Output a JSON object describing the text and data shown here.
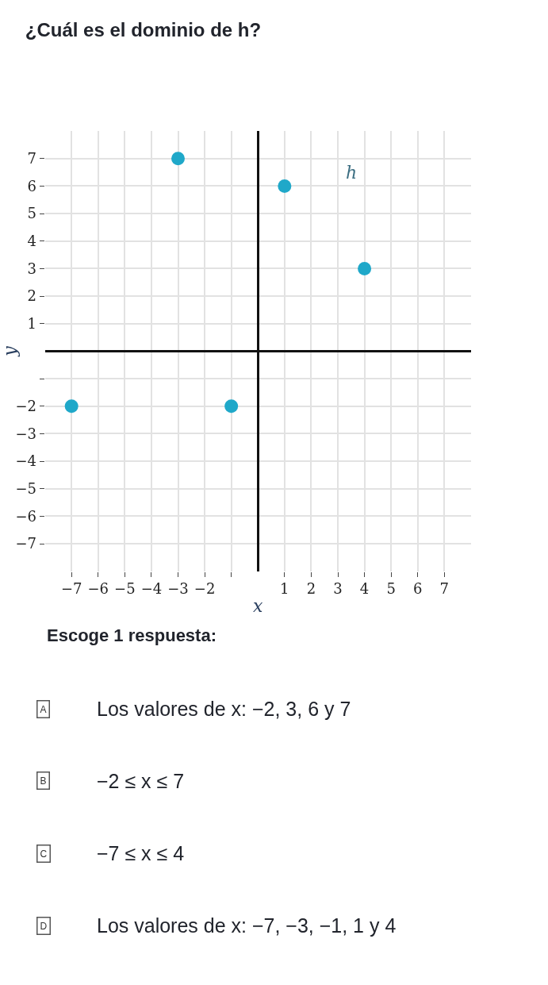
{
  "chart_data": {
    "type": "scatter",
    "title": "¿Cuál es el dominio de h?",
    "xlabel": "x",
    "ylabel": "y",
    "series": [
      {
        "name": "h",
        "color": "#1fa8c9",
        "x": [
          -7,
          -3,
          -1,
          1,
          4
        ],
        "values": [
          -2,
          7,
          -2,
          6,
          3
        ]
      }
    ],
    "xlim": [
      -8,
      8
    ],
    "ylim": [
      -8,
      8
    ],
    "xticks": [
      -7,
      -6,
      -5,
      -4,
      -3,
      -2,
      {
        "value": -1,
        "label": null
      },
      1,
      2,
      3,
      4,
      5,
      6,
      7
    ],
    "yticks": [
      -7,
      -6,
      -5,
      -4,
      -3,
      -2,
      {
        "value": -1,
        "label": null
      },
      1,
      2,
      3,
      4,
      5,
      6,
      7
    ],
    "grid": true,
    "marker": "circle",
    "legend": false,
    "annotations": [
      "Escoge 1 respuesta:",
      "A",
      "Los valores de x: −2, 3, 6 y 7",
      "B",
      "−2 ≤ x ≤ 7",
      "C",
      "−7 ≤ x ≤ 4",
      "D",
      "Los valores de x: −7, −3, −1, 1 y 4"
    ]
  }
}
